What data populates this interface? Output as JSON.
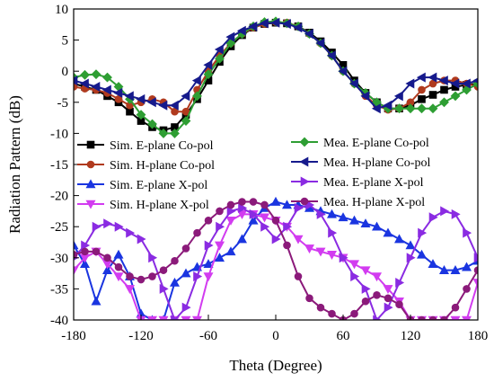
{
  "chart_data": {
    "type": "line",
    "xlabel": "Theta (Degree)",
    "ylabel": "Radiation Pattern (dB)",
    "xlim": [
      -180,
      180
    ],
    "ylim": [
      -40,
      10
    ],
    "xticks": [
      -180,
      -120,
      -60,
      0,
      60,
      120,
      180
    ],
    "yticks": [
      10,
      5,
      0,
      -5,
      -10,
      -15,
      -20,
      -25,
      -30,
      -35,
      -40
    ],
    "legend": {
      "left": [
        "sim_e_co",
        "sim_h_co",
        "sim_e_x",
        "sim_h_x"
      ],
      "right": [
        "mea_e_co",
        "mea_h_co",
        "mea_e_x",
        "mea_h_x"
      ]
    },
    "series": [
      {
        "id": "sim_e_co",
        "name": "Sim. E-plane Co-pol",
        "color": "#000000",
        "marker": "square",
        "x": [
          -180,
          -170,
          -160,
          -150,
          -140,
          -130,
          -120,
          -110,
          -100,
          -90,
          -80,
          -70,
          -60,
          -50,
          -40,
          -30,
          -20,
          -10,
          0,
          10,
          20,
          30,
          40,
          50,
          60,
          70,
          80,
          90,
          100,
          110,
          120,
          130,
          140,
          150,
          160,
          170,
          180
        ],
        "y": [
          -2,
          -2.5,
          -3,
          -4,
          -5,
          -6.5,
          -8,
          -9,
          -9.5,
          -9,
          -7,
          -4.5,
          -1.5,
          1.5,
          4,
          5.8,
          7,
          7.6,
          7.8,
          7.7,
          7.2,
          6.2,
          4.8,
          3,
          1,
          -1.5,
          -3.5,
          -5,
          -6,
          -6,
          -5.5,
          -4.5,
          -3.8,
          -3,
          -2.5,
          -2.2,
          -2
        ]
      },
      {
        "id": "sim_h_co",
        "name": "Sim. H-plane Co-pol",
        "color": "#b03a1e",
        "marker": "circle",
        "x": [
          -180,
          -170,
          -160,
          -150,
          -140,
          -130,
          -120,
          -110,
          -100,
          -90,
          -80,
          -70,
          -60,
          -50,
          -40,
          -30,
          -20,
          -10,
          0,
          10,
          20,
          30,
          40,
          50,
          60,
          70,
          80,
          90,
          100,
          110,
          120,
          130,
          140,
          150,
          160,
          170,
          180
        ],
        "y": [
          -2.5,
          -2.8,
          -3,
          -3.5,
          -4.5,
          -5.5,
          -5,
          -4.5,
          -5,
          -6.5,
          -6.5,
          -3,
          0,
          2.5,
          4.5,
          6,
          7,
          7.6,
          7.9,
          7.8,
          7.2,
          6,
          4.5,
          2.5,
          0,
          -2,
          -4,
          -5.5,
          -6.2,
          -6,
          -5,
          -3,
          -2,
          -1.5,
          -1.5,
          -2,
          -2.5
        ]
      },
      {
        "id": "sim_e_x",
        "name": "Sim. E-plane X-pol",
        "color": "#1a35e0",
        "marker": "triangle-up",
        "x": [
          -180,
          -170,
          -160,
          -150,
          -140,
          -130,
          -120,
          -110,
          -100,
          -90,
          -80,
          -70,
          -60,
          -50,
          -40,
          -30,
          -20,
          -10,
          0,
          10,
          20,
          30,
          40,
          50,
          60,
          70,
          80,
          90,
          100,
          110,
          120,
          130,
          140,
          150,
          160,
          170,
          180
        ],
        "y": [
          -28,
          -31,
          -37,
          -32,
          -29.5,
          -33,
          -39,
          -40,
          -40,
          -34,
          -32.5,
          -31.5,
          -31,
          -30,
          -29,
          -27,
          -24,
          -22,
          -21,
          -21.5,
          -21.5,
          -22,
          -22.5,
          -23,
          -23.5,
          -24,
          -24.5,
          -25,
          -26,
          -27,
          -28,
          -29.5,
          -31,
          -32,
          -32,
          -31.5,
          -30.5
        ]
      },
      {
        "id": "sim_h_x",
        "name": "Sim. H-plane X-pol",
        "color": "#d23cf0",
        "marker": "triangle-down",
        "x": [
          -180,
          -170,
          -160,
          -150,
          -140,
          -130,
          -120,
          -110,
          -100,
          -90,
          -80,
          -70,
          -60,
          -50,
          -40,
          -30,
          -20,
          -10,
          0,
          10,
          20,
          30,
          40,
          50,
          60,
          70,
          80,
          90,
          100,
          110,
          120,
          130,
          140,
          150,
          160,
          170,
          180
        ],
        "y": [
          -32,
          -30,
          -29,
          -31,
          -33,
          -35,
          -40,
          -40,
          -40,
          -40,
          -40,
          -40,
          -33,
          -28,
          -24,
          -23,
          -23,
          -23.5,
          -24,
          -25,
          -27,
          -28.5,
          -29,
          -29.5,
          -30,
          -31,
          -32,
          -33,
          -35,
          -37,
          -40,
          -40,
          -40,
          -40,
          -40,
          -40,
          -34
        ]
      },
      {
        "id": "mea_e_co",
        "name": "Mea. E-plane Co-pol",
        "color": "#2e9e33",
        "marker": "diamond",
        "x": [
          -180,
          -170,
          -160,
          -150,
          -140,
          -130,
          -120,
          -110,
          -100,
          -90,
          -80,
          -70,
          -60,
          -50,
          -40,
          -30,
          -20,
          -10,
          0,
          10,
          20,
          30,
          40,
          50,
          60,
          70,
          80,
          90,
          100,
          110,
          120,
          130,
          140,
          150,
          160,
          170,
          180
        ],
        "y": [
          -1,
          -0.6,
          -0.5,
          -1,
          -2.5,
          -4.5,
          -7,
          -8.5,
          -10,
          -10,
          -8,
          -4,
          -0.5,
          2,
          4.5,
          6,
          7.2,
          7.9,
          8,
          7.7,
          7.2,
          6,
          4.5,
          2.5,
          0,
          -2,
          -3.5,
          -5,
          -6,
          -6,
          -6,
          -6,
          -6,
          -5,
          -4,
          -3,
          -2
        ]
      },
      {
        "id": "mea_h_co",
        "name": "Mea. H-plane Co-pol",
        "color": "#161a8c",
        "marker": "triangle-left",
        "x": [
          -180,
          -170,
          -160,
          -150,
          -140,
          -130,
          -120,
          -110,
          -100,
          -90,
          -80,
          -70,
          -60,
          -50,
          -40,
          -30,
          -20,
          -10,
          0,
          10,
          20,
          30,
          40,
          50,
          60,
          70,
          80,
          90,
          100,
          110,
          120,
          130,
          140,
          150,
          160,
          170,
          180
        ],
        "y": [
          -1.5,
          -2,
          -2.5,
          -3,
          -3.5,
          -4,
          -4.5,
          -5,
          -5.5,
          -5.5,
          -4,
          -1.5,
          1,
          3.5,
          5.5,
          6.5,
          7.2,
          7.7,
          7.8,
          7.6,
          7,
          6,
          4.5,
          2.5,
          0,
          -2,
          -4,
          -6,
          -5.5,
          -4,
          -2,
          -1,
          -1,
          -1.5,
          -2,
          -2,
          -1.5
        ]
      },
      {
        "id": "mea_e_x",
        "name": "Mea. E-plane X-pol",
        "color": "#8a2be2",
        "marker": "triangle-right",
        "x": [
          -180,
          -170,
          -160,
          -150,
          -140,
          -130,
          -120,
          -110,
          -100,
          -90,
          -80,
          -70,
          -60,
          -50,
          -40,
          -30,
          -20,
          -10,
          0,
          10,
          20,
          30,
          40,
          50,
          60,
          70,
          80,
          90,
          100,
          110,
          120,
          130,
          140,
          150,
          160,
          170,
          180
        ],
        "y": [
          -30,
          -28,
          -25,
          -24.5,
          -25,
          -26,
          -27,
          -30,
          -35,
          -40,
          -38,
          -33,
          -28,
          -25,
          -22.5,
          -22,
          -23,
          -25,
          -27,
          -25,
          -22,
          -21.5,
          -23,
          -26,
          -30,
          -33,
          -35,
          -40,
          -38,
          -34,
          -30,
          -26,
          -23.5,
          -22.5,
          -23,
          -26,
          -30
        ]
      },
      {
        "id": "mea_h_x",
        "name": "Mea. H-plane X-pol",
        "color": "#8b1a7a",
        "marker": "circle",
        "x": [
          -180,
          -170,
          -160,
          -150,
          -140,
          -130,
          -120,
          -110,
          -100,
          -90,
          -80,
          -70,
          -60,
          -50,
          -40,
          -30,
          -20,
          -10,
          0,
          10,
          20,
          30,
          40,
          50,
          60,
          70,
          80,
          90,
          100,
          110,
          120,
          130,
          140,
          150,
          160,
          170,
          180
        ],
        "y": [
          -29.5,
          -29,
          -29,
          -30,
          -31.5,
          -33,
          -33.5,
          -33,
          -32,
          -30.5,
          -28.5,
          -26,
          -24,
          -22.5,
          -21.5,
          -21,
          -21,
          -21.5,
          -24,
          -28,
          -33,
          -36.5,
          -38,
          -39,
          -40,
          -39,
          -37,
          -36,
          -36.5,
          -37.5,
          -40,
          -40,
          -40,
          -40,
          -38,
          -35,
          -32
        ]
      }
    ]
  }
}
